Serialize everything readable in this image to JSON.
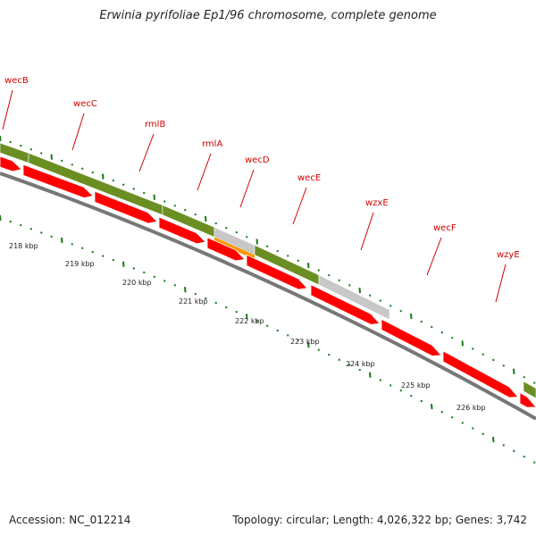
{
  "title": "Erwinia pyrifoliae Ep1/96 chromosome, complete genome",
  "footer": {
    "accession": "Accession: NC_012214",
    "summary": "Topology: circular; Length: 4,026,322 bp; Genes: 3,742"
  },
  "colors": {
    "cds": "#ff0000",
    "gene_track": "#6b8e23",
    "pseudo_track": "#c8c8c8",
    "orange_feature": "#ff9900",
    "tick": "#1a7a1a",
    "label": "#d40000",
    "backbone": "#777777"
  },
  "chart_data": {
    "type": "genome-map",
    "unit": "kbp",
    "position_ticks": [
      "218 kbp",
      "219 kbp",
      "220 kbp",
      "221 kbp",
      "222 kbp",
      "223 kbp",
      "224 kbp",
      "225 kbp",
      "226 kbp"
    ],
    "gene_labels": [
      "wecB",
      "wecC",
      "rmlB",
      "rmlA",
      "wecD",
      "wecE",
      "wzxE",
      "wecF",
      "wzyE"
    ]
  }
}
